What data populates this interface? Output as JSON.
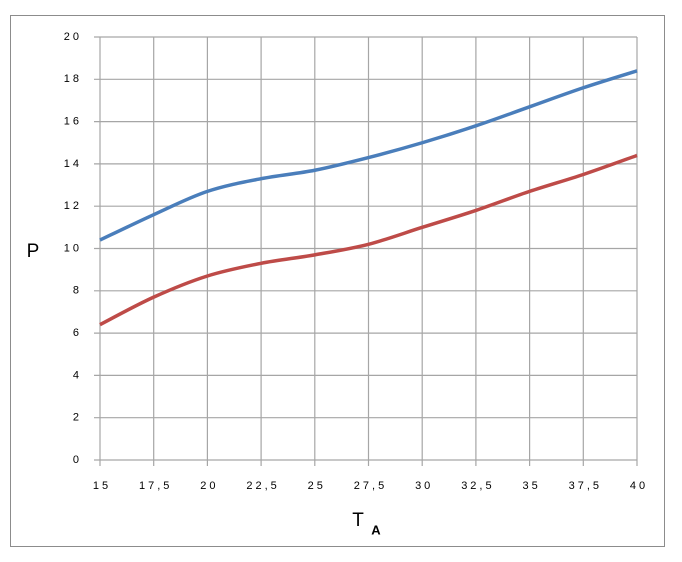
{
  "chart_data": {
    "type": "line",
    "ylabel": "P",
    "xlabel": "T",
    "xlabel_subscript": "A",
    "x": [
      15,
      17.5,
      20,
      22.5,
      25,
      27.5,
      30,
      32.5,
      35,
      37.5,
      40
    ],
    "series": [
      {
        "color": "#4a7ebb",
        "values": [
          10.4,
          11.6,
          12.7,
          13.3,
          13.7,
          14.3,
          15.0,
          15.8,
          16.7,
          17.6,
          18.4
        ]
      },
      {
        "color": "#be4b48",
        "values": [
          6.4,
          7.7,
          8.7,
          9.3,
          9.7,
          10.2,
          11.0,
          11.8,
          12.7,
          13.5,
          14.4
        ]
      }
    ],
    "xlim": [
      15,
      40
    ],
    "xticks": [
      15,
      {
        "value": 17.5,
        "label": "17,5"
      },
      20,
      {
        "value": 22.5,
        "label": "22,5"
      },
      25,
      {
        "value": 27.5,
        "label": "27,5"
      },
      30,
      {
        "value": 32.5,
        "label": "32,5"
      },
      35,
      {
        "value": 37.5,
        "label": "37,5"
      },
      40
    ],
    "ylim": [
      0,
      20
    ],
    "yticks": [
      0,
      2,
      4,
      6,
      8,
      10,
      12,
      14,
      16,
      18,
      20
    ],
    "grid": true
  }
}
